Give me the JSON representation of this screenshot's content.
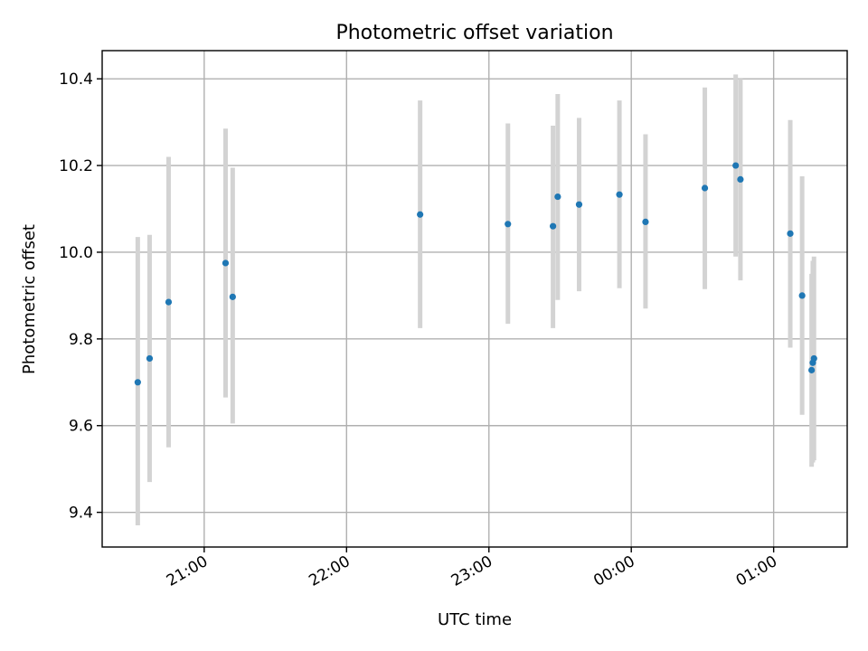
{
  "chart_data": {
    "type": "scatter",
    "title": "Photometric offset variation",
    "xlabel": "UTC time",
    "ylabel": "Photometric offset",
    "x_unit": "hours (UTC, continuous across midnight)",
    "xlim": [
      "20:17",
      "01:31"
    ],
    "ylim": [
      9.32,
      10.465
    ],
    "xticks": [
      {
        "label": "21:00",
        "value": "21:00"
      },
      {
        "label": "22:00",
        "value": "22:00"
      },
      {
        "label": "23:00",
        "value": "23:00"
      },
      {
        "label": "00:00",
        "value": "00:00"
      },
      {
        "label": "01:00",
        "value": "01:00"
      }
    ],
    "yticks": [
      9.4,
      9.6,
      9.8,
      10.0,
      10.2,
      10.4
    ],
    "ytick_labels": [
      "9.4",
      "9.6",
      "9.8",
      "10.0",
      "10.2",
      "10.4"
    ],
    "grid": true,
    "series": [
      {
        "marker_color": "#1f77b4",
        "errorbar_color": "#d3d3d3",
        "points": [
          {
            "x": "20:32",
            "y": 9.7,
            "ylow": 9.37,
            "yhigh": 10.035
          },
          {
            "x": "20:37",
            "y": 9.755,
            "ylow": 9.47,
            "yhigh": 10.04
          },
          {
            "x": "20:45",
            "y": 9.885,
            "ylow": 9.55,
            "yhigh": 10.22
          },
          {
            "x": "21:09",
            "y": 9.975,
            "ylow": 9.665,
            "yhigh": 10.285
          },
          {
            "x": "21:12",
            "y": 9.897,
            "ylow": 9.605,
            "yhigh": 10.195
          },
          {
            "x": "22:31",
            "y": 10.087,
            "ylow": 9.825,
            "yhigh": 10.35
          },
          {
            "x": "23:08",
            "y": 10.065,
            "ylow": 9.835,
            "yhigh": 10.297
          },
          {
            "x": "23:27",
            "y": 10.06,
            "ylow": 9.825,
            "yhigh": 10.292
          },
          {
            "x": "23:29",
            "y": 10.128,
            "ylow": 9.89,
            "yhigh": 10.365
          },
          {
            "x": "23:38",
            "y": 10.11,
            "ylow": 9.91,
            "yhigh": 10.31
          },
          {
            "x": "23:55",
            "y": 10.133,
            "ylow": 9.917,
            "yhigh": 10.35
          },
          {
            "x": "00:06",
            "y": 10.07,
            "ylow": 9.87,
            "yhigh": 10.272
          },
          {
            "x": "00:31",
            "y": 10.148,
            "ylow": 9.915,
            "yhigh": 10.38
          },
          {
            "x": "00:44",
            "y": 10.2,
            "ylow": 9.99,
            "yhigh": 10.41
          },
          {
            "x": "00:46",
            "y": 10.168,
            "ylow": 9.935,
            "yhigh": 10.4
          },
          {
            "x": "01:07",
            "y": 10.043,
            "ylow": 9.78,
            "yhigh": 10.305
          },
          {
            "x": "01:12",
            "y": 9.9,
            "ylow": 9.625,
            "yhigh": 10.175
          },
          {
            "x": "01:16",
            "y": 9.728,
            "ylow": 9.505,
            "yhigh": 9.95
          },
          {
            "x": "01:16.5",
            "y": 9.745,
            "ylow": 9.515,
            "yhigh": 9.98
          },
          {
            "x": "01:17",
            "y": 9.755,
            "ylow": 9.52,
            "yhigh": 9.99
          }
        ]
      }
    ]
  }
}
